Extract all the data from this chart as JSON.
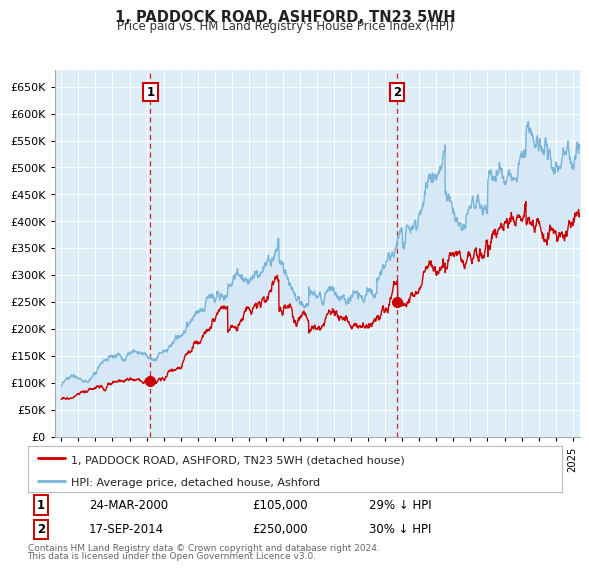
{
  "title": "1, PADDOCK ROAD, ASHFORD, TN23 5WH",
  "subtitle": "Price paid vs. HM Land Registry's House Price Index (HPI)",
  "ylim": [
    0,
    680000
  ],
  "yticks": [
    0,
    50000,
    100000,
    150000,
    200000,
    250000,
    300000,
    350000,
    400000,
    450000,
    500000,
    550000,
    600000,
    650000
  ],
  "transaction1": {
    "date_num": 2000.23,
    "price": 105000,
    "label": "1",
    "date_str": "24-MAR-2000",
    "pct": "29%"
  },
  "transaction2": {
    "date_num": 2014.72,
    "price": 250000,
    "label": "2",
    "date_str": "17-SEP-2014",
    "pct": "30%"
  },
  "hpi_color": "#7ab4d8",
  "price_color": "#cc0000",
  "fill_color": "#d6e8f5",
  "legend_label1": "1, PADDOCK ROAD, ASHFORD, TN23 5WH (detached house)",
  "legend_label2": "HPI: Average price, detached house, Ashford",
  "footer1": "Contains HM Land Registry data © Crown copyright and database right 2024.",
  "footer2": "This data is licensed under the Open Government Licence v3.0.",
  "xmin": 1994.6,
  "xmax": 2025.4,
  "chart_bg": "#ddeef8",
  "fig_bg": "#ffffff"
}
